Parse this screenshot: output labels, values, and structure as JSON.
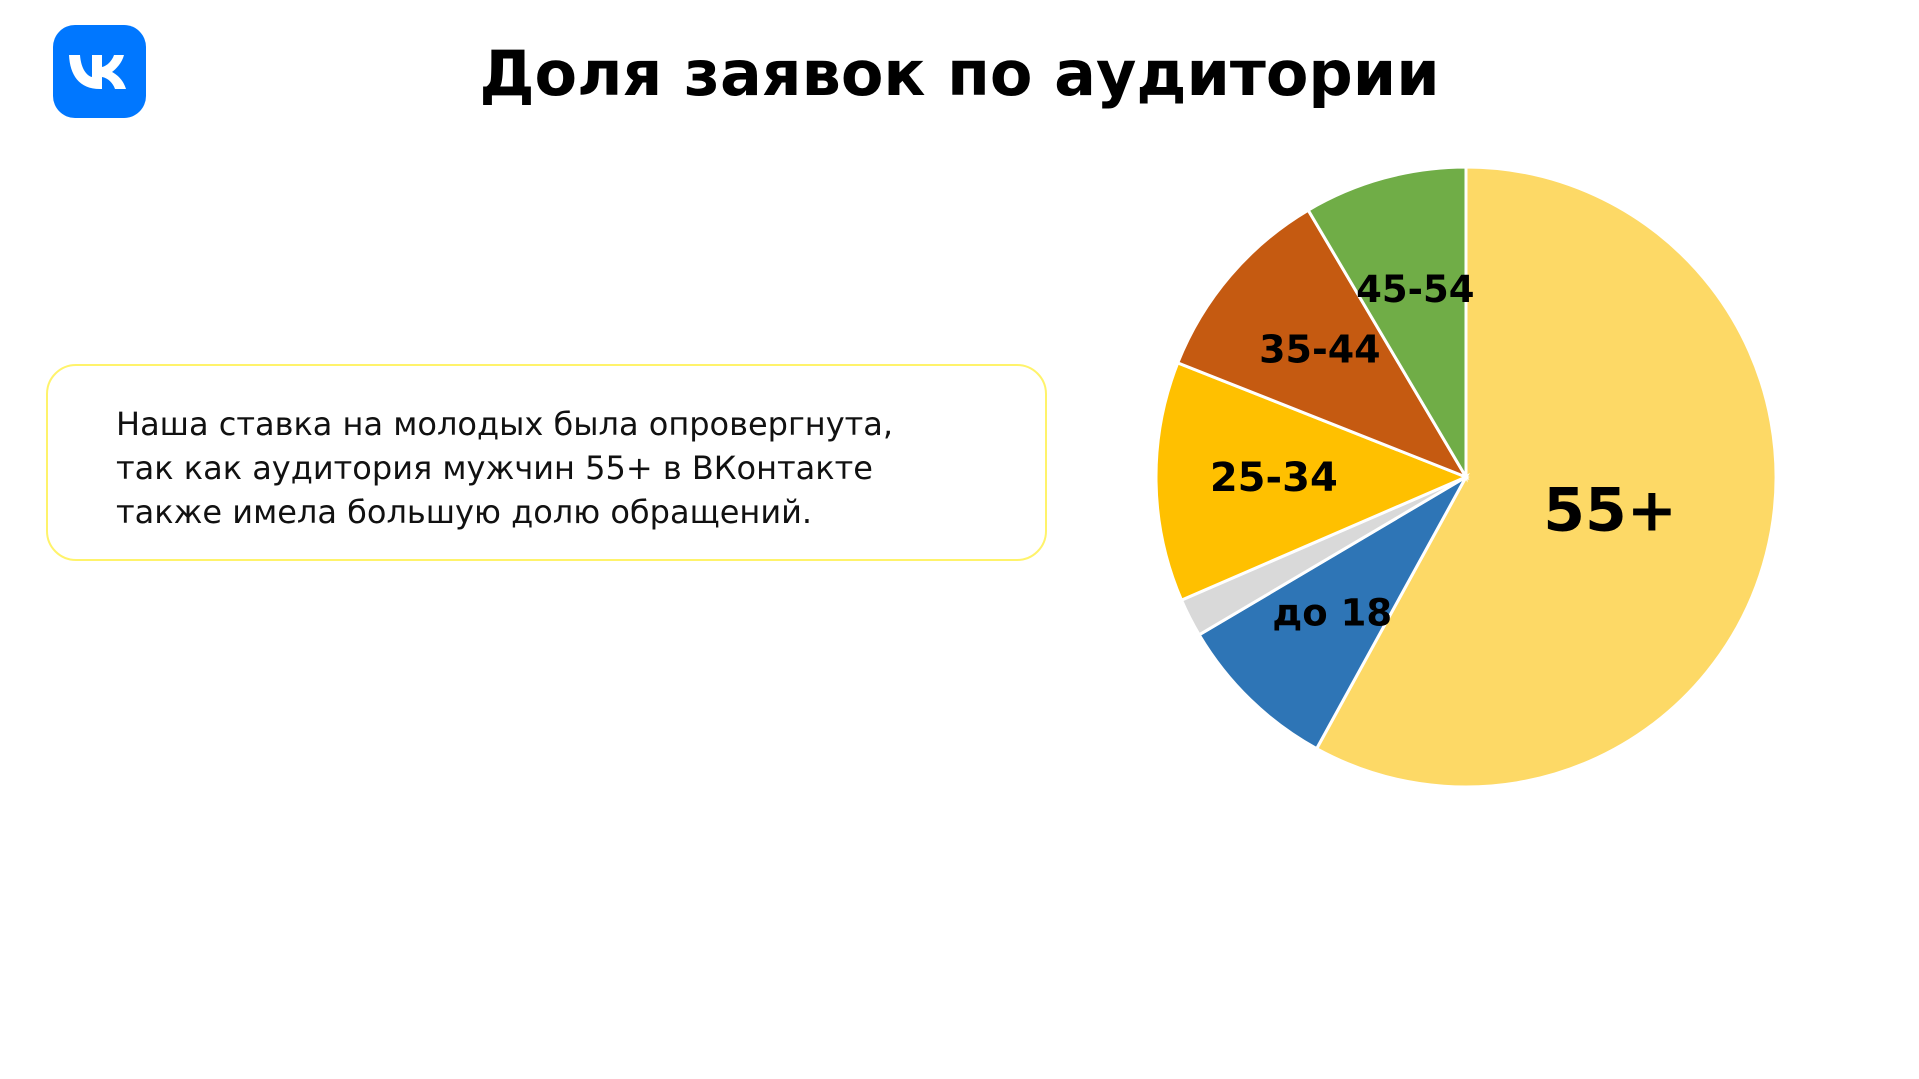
{
  "header": {
    "title": "Доля заявок по аудитории"
  },
  "callout": {
    "lines": [
      "Наша ставка на молодых была опровергнута,",
      "так как аудитория мужчин 55+ в ВКонтакте",
      "также имела большую долю обращений."
    ]
  },
  "chart_data": {
    "type": "pie",
    "categories": [
      "55+",
      "до 18",
      null,
      "25-34",
      "35-44",
      "45-54"
    ],
    "values": [
      58,
      8.5,
      2,
      12.5,
      10.5,
      8.5
    ],
    "colors": [
      "#fdd966",
      "#2e75b6",
      "#d9d9d9",
      "#ffc000",
      "#c55a11",
      "#70ad47"
    ]
  }
}
